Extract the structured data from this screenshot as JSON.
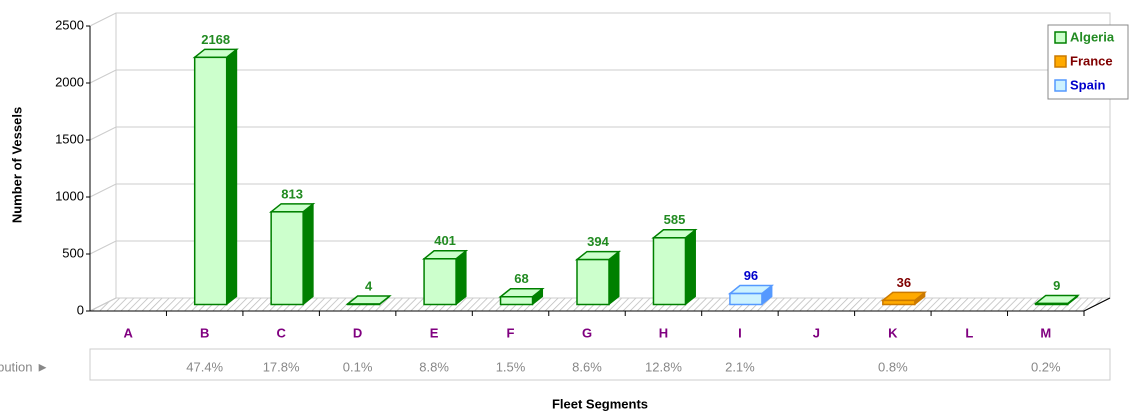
{
  "chart_data": {
    "type": "bar3d",
    "x_label": "Fleet Segments",
    "y_label": "Number of Vessels",
    "categories": [
      "A",
      "B",
      "C",
      "D",
      "E",
      "F",
      "G",
      "H",
      "I",
      "J",
      "K",
      "L",
      "M"
    ],
    "series": [
      {
        "name": "Algeria",
        "color": "#ccffcc",
        "edge": "#008000",
        "label_color": "#228b22",
        "values": [
          null,
          2168,
          813,
          4,
          401,
          68,
          394,
          585,
          null,
          null,
          null,
          null,
          9
        ]
      },
      {
        "name": "France",
        "color": "#ffaa00",
        "edge": "#cc7a00",
        "label_color": "#800000",
        "values": [
          null,
          null,
          null,
          null,
          null,
          null,
          null,
          null,
          null,
          null,
          36,
          null,
          null
        ]
      },
      {
        "name": "Spain",
        "color": "#ccf2ff",
        "edge": "#5599ff",
        "label_color": "#0000cc",
        "values": [
          null,
          null,
          null,
          null,
          null,
          null,
          null,
          null,
          96,
          null,
          null,
          null,
          null
        ]
      }
    ],
    "ylim": [
      0,
      2500
    ],
    "yticks": [
      0,
      500,
      1000,
      1500,
      2000,
      2500
    ],
    "grid": true,
    "legend": "top-right",
    "distribution": {
      "label": "Distribution ►",
      "values": [
        null,
        "47.4%",
        "17.8%",
        "0.1%",
        "8.8%",
        "1.5%",
        "8.6%",
        "12.8%",
        "2.1%",
        null,
        "0.8%",
        null,
        "0.2%"
      ]
    }
  }
}
